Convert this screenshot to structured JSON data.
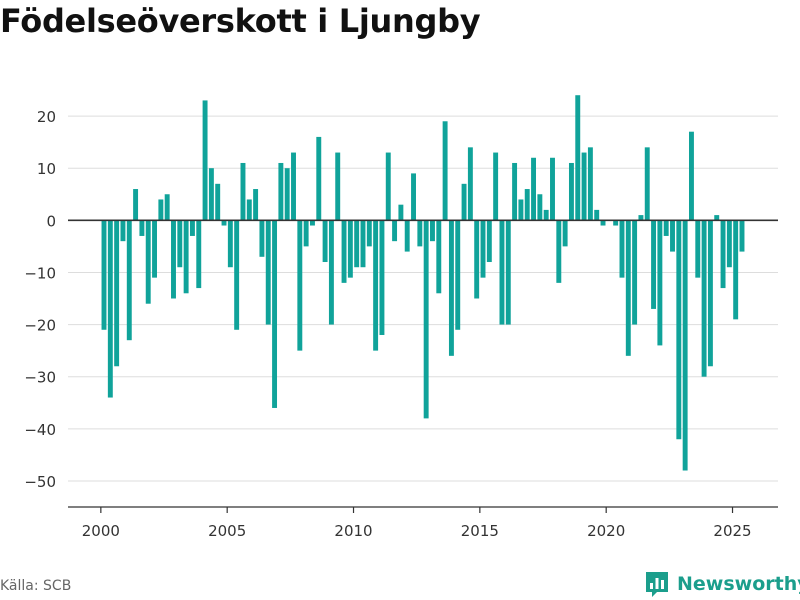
{
  "title": "Födelseöverskott i Ljungby",
  "source": "Källa: SCB",
  "brand": "Newsworthy",
  "colors": {
    "bars": "#10a39a",
    "brand": "#1b9e8c",
    "grid": "#dddddd",
    "zero_line": "#333333",
    "text": "#333333"
  },
  "chart_data": {
    "type": "bar",
    "title": "Födelseöverskott i Ljungby",
    "xlabel": "",
    "ylabel": "",
    "ylim": [
      -55,
      25
    ],
    "xlim": [
      1998.7,
      2026.8
    ],
    "y_ticks": [
      20,
      10,
      0,
      -10,
      -20,
      -30,
      -40,
      -50
    ],
    "y_tick_labels": [
      "20",
      "10",
      "0",
      "−10",
      "−20",
      "−30",
      "−40",
      "−50"
    ],
    "x_ticks": [
      2000,
      2005,
      2010,
      2015,
      2020,
      2025
    ],
    "x_tick_labels": [
      "2000",
      "2005",
      "2010",
      "2015",
      "2020",
      "2025"
    ],
    "grid": "horizontal",
    "legend": "none",
    "bars_per_year": 4,
    "first_period": "2000 Q1",
    "last_period": "2025 Q2",
    "values": [
      -21,
      -34,
      -28,
      -4,
      -23,
      6,
      -3,
      -16,
      -11,
      4,
      5,
      -15,
      -9,
      -14,
      -3,
      -13,
      23,
      10,
      7,
      -1,
      -9,
      -21,
      11,
      4,
      6,
      -7,
      -20,
      -36,
      11,
      10,
      13,
      -25,
      -5,
      -1,
      16,
      -8,
      -20,
      13,
      -12,
      -11,
      -9,
      -9,
      -5,
      -25,
      -22,
      13,
      -4,
      3,
      -6,
      9,
      -5,
      -38,
      -4,
      -14,
      19,
      -26,
      -21,
      7,
      14,
      -15,
      -11,
      -8,
      13,
      -20,
      -20,
      11,
      4,
      6,
      12,
      5,
      2,
      12,
      -12,
      -5,
      11,
      24,
      13,
      14,
      2,
      -1,
      0,
      -1,
      -11,
      -26,
      -20,
      1,
      14,
      -17,
      -24,
      -3,
      -6,
      -42,
      -48,
      17,
      -11,
      -30,
      -28,
      1,
      -13,
      -9,
      -19,
      -6
    ]
  }
}
